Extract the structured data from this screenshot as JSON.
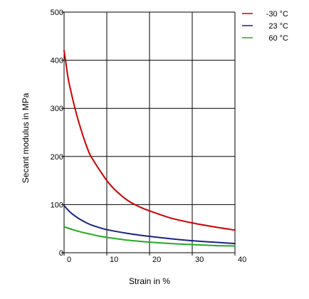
{
  "chart_data": {
    "type": "line",
    "xlabel": "Strain in %",
    "ylabel": "Secant modulus in MPa",
    "xlim": [
      0,
      40
    ],
    "ylim": [
      0,
      500
    ],
    "xticks": [
      0,
      10,
      20,
      30,
      40
    ],
    "yticks": [
      0,
      100,
      200,
      300,
      400,
      500
    ],
    "grid": true,
    "legend_position": "top-right",
    "series": [
      {
        "name": "-30 °C",
        "color": "#cc0000",
        "x": [
          0,
          0.5,
          1,
          2,
          3,
          4,
          5,
          6,
          7,
          8,
          10,
          12,
          15,
          18,
          20,
          25,
          30,
          35,
          40
        ],
        "y": [
          420,
          390,
          360,
          320,
          285,
          255,
          228,
          205,
          190,
          176,
          150,
          130,
          108,
          94,
          87,
          72,
          62,
          54,
          47
        ]
      },
      {
        "name": "23 °C",
        "color": "#1a237e",
        "x": [
          0,
          1,
          2,
          4,
          6,
          8,
          10,
          15,
          20,
          25,
          30,
          35,
          40
        ],
        "y": [
          98,
          88,
          80,
          68,
          59,
          53,
          48,
          40,
          34,
          29,
          25,
          22,
          19
        ]
      },
      {
        "name": "60 °C",
        "color": "#22aa22",
        "x": [
          0,
          2,
          4,
          6,
          8,
          10,
          15,
          20,
          25,
          30,
          35,
          40
        ],
        "y": [
          54,
          48,
          43,
          39,
          35,
          32,
          26,
          22,
          19,
          17,
          15,
          14
        ]
      }
    ]
  }
}
